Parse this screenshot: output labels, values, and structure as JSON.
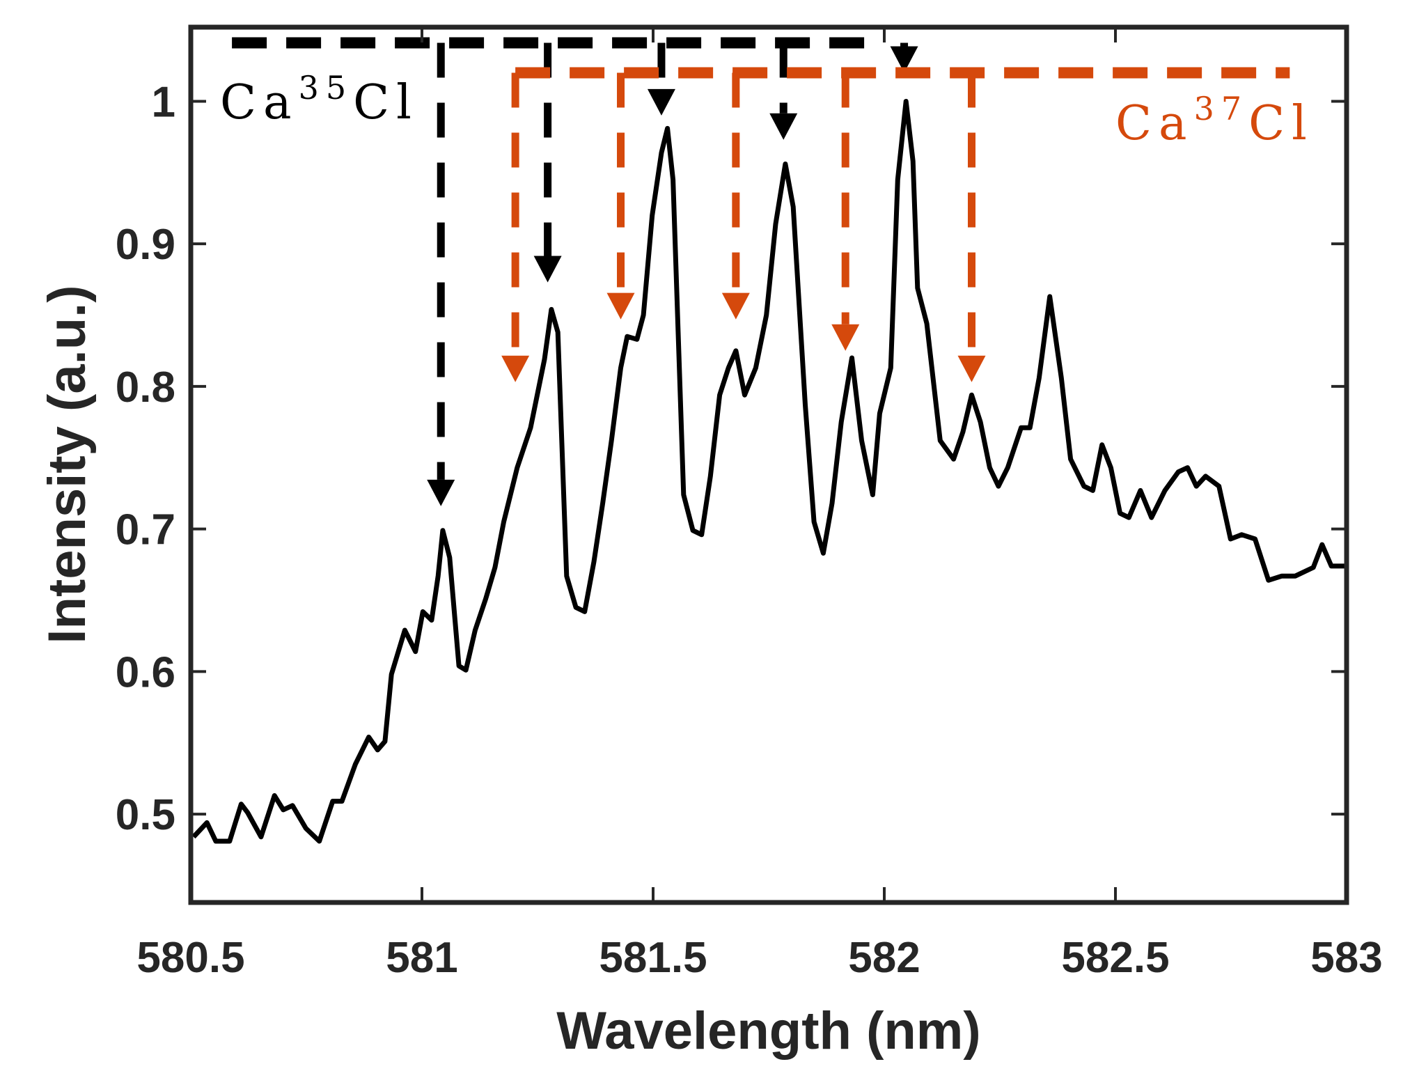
{
  "chart_data": {
    "type": "line",
    "title": "",
    "xlabel": "Wavelength (nm)",
    "ylabel": "Intensity (a.u.)",
    "xlim": [
      580.5,
      583
    ],
    "ylim": [
      0.438,
      1.052
    ],
    "xticks": [
      580.5,
      581,
      581.5,
      582,
      582.5,
      583
    ],
    "xtick_labels": [
      "580.5",
      "581",
      "581.5",
      "582",
      "582.5",
      "583"
    ],
    "yticks": [
      0.5,
      0.6,
      0.7,
      0.8,
      0.9,
      1
    ],
    "ytick_labels": [
      "0.5",
      "0.6",
      "0.7",
      "0.8",
      "0.9",
      "1"
    ],
    "grid": false,
    "line_color": "#000000",
    "series": [
      {
        "x": [
          580.506,
          580.535,
          580.554,
          580.584,
          580.609,
          580.623,
          580.652,
          580.681,
          580.7,
          580.72,
          580.749,
          580.778,
          580.807,
          580.827,
          580.856,
          580.885,
          580.904,
          580.92,
          580.934,
          580.963,
          580.986,
          581.002,
          581.021,
          581.035,
          581.045,
          581.06,
          581.08,
          581.095,
          581.115,
          581.138,
          581.158,
          581.177,
          581.206,
          581.235,
          581.265,
          581.28,
          581.294,
          581.313,
          581.333,
          581.352,
          581.372,
          581.391,
          581.41,
          581.43,
          581.444,
          581.465,
          581.479,
          581.498,
          581.518,
          581.531,
          581.543,
          581.566,
          581.586,
          581.605,
          581.624,
          581.644,
          581.663,
          581.679,
          581.698,
          581.722,
          581.745,
          581.765,
          581.786,
          581.803,
          581.829,
          581.848,
          581.868,
          581.887,
          581.907,
          581.93,
          581.951,
          581.975,
          581.99,
          582.014,
          582.029,
          582.047,
          582.062,
          582.072,
          582.092,
          582.121,
          582.15,
          582.17,
          582.189,
          582.208,
          582.228,
          582.247,
          582.267,
          582.296,
          582.315,
          582.335,
          582.358,
          582.383,
          582.403,
          582.432,
          582.451,
          582.471,
          582.49,
          582.51,
          582.529,
          582.554,
          582.578,
          582.607,
          582.636,
          582.656,
          582.675,
          582.695,
          582.724,
          582.749,
          582.773,
          582.802,
          582.831,
          582.86,
          582.889,
          582.928,
          582.947,
          582.967,
          583.0
        ],
        "y": [
          0.484,
          0.494,
          0.481,
          0.481,
          0.507,
          0.501,
          0.484,
          0.513,
          0.503,
          0.506,
          0.49,
          0.481,
          0.509,
          0.509,
          0.535,
          0.554,
          0.545,
          0.551,
          0.598,
          0.629,
          0.614,
          0.642,
          0.636,
          0.667,
          0.699,
          0.68,
          0.604,
          0.601,
          0.629,
          0.651,
          0.673,
          0.705,
          0.743,
          0.771,
          0.819,
          0.854,
          0.838,
          0.667,
          0.645,
          0.642,
          0.677,
          0.718,
          0.762,
          0.813,
          0.835,
          0.833,
          0.85,
          0.92,
          0.964,
          0.981,
          0.945,
          0.724,
          0.699,
          0.696,
          0.737,
          0.794,
          0.813,
          0.825,
          0.794,
          0.813,
          0.85,
          0.914,
          0.956,
          0.926,
          0.787,
          0.705,
          0.683,
          0.718,
          0.775,
          0.82,
          0.762,
          0.724,
          0.781,
          0.813,
          0.945,
          1.0,
          0.958,
          0.869,
          0.844,
          0.762,
          0.749,
          0.768,
          0.794,
          0.775,
          0.743,
          0.73,
          0.743,
          0.771,
          0.771,
          0.806,
          0.863,
          0.806,
          0.749,
          0.73,
          0.727,
          0.759,
          0.743,
          0.711,
          0.708,
          0.727,
          0.708,
          0.727,
          0.74,
          0.743,
          0.73,
          0.737,
          0.73,
          0.693,
          0.696,
          0.693,
          0.664,
          0.667,
          0.667,
          0.673,
          0.689,
          0.674,
          0.674
        ]
      }
    ],
    "annotations": [
      {
        "label_base": "Ca",
        "label_sup": "35",
        "label_tail": "Cl",
        "color": "#000000",
        "bar_y": 1.041,
        "bar_x": [
          580.589,
          581.994
        ],
        "arrows": [
          {
            "x": 581.041,
            "tip": 0.716
          },
          {
            "x": 581.272,
            "tip": 0.873
          },
          {
            "x": 581.518,
            "tip": 0.99
          },
          {
            "x": 581.782,
            "tip": 0.973
          },
          {
            "x": 582.043,
            "tip": 1.02
          }
        ]
      },
      {
        "label_base": "Ca",
        "label_sup": "37",
        "label_tail": "Cl",
        "color": "#D5490C",
        "bar_y": 1.02,
        "bar_x": [
          581.202,
          582.877
        ],
        "arrows": [
          {
            "x": 581.202,
            "tip": 0.803
          },
          {
            "x": 581.43,
            "tip": 0.847
          },
          {
            "x": 581.679,
            "tip": 0.847
          },
          {
            "x": 581.916,
            "tip": 0.825
          },
          {
            "x": 582.189,
            "tip": 0.803
          }
        ]
      }
    ],
    "legend": "none",
    "axis_color": "#262626"
  }
}
